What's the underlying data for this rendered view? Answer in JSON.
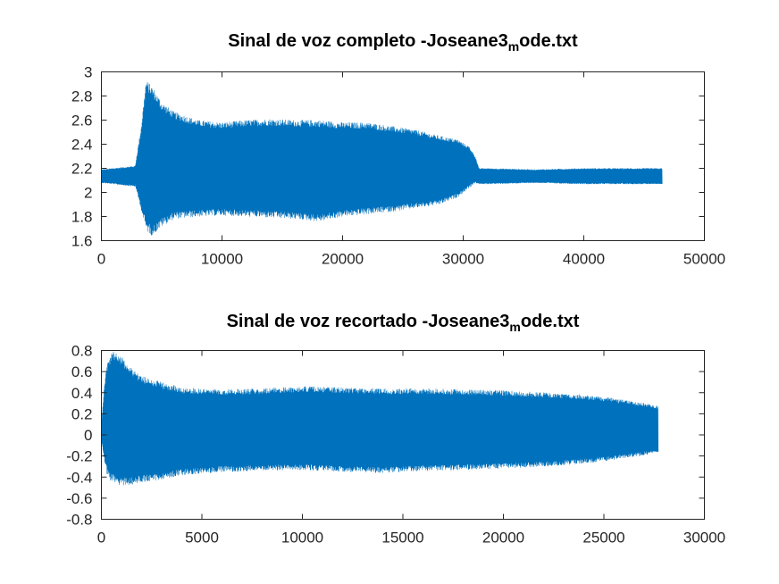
{
  "chart_data": [
    {
      "type": "line",
      "title_main": "Sinal de voz completo -Joseane3",
      "title_sub": "m",
      "title_tail": "ode.txt",
      "xlim": [
        0,
        50000
      ],
      "ylim": [
        1.6,
        3.0
      ],
      "xticks": [
        0,
        10000,
        20000,
        30000,
        40000,
        50000
      ],
      "xtick_labels": [
        "0",
        "10000",
        "20000",
        "30000",
        "40000",
        "50000"
      ],
      "yticks": [
        1.6,
        1.8,
        2.0,
        2.2,
        2.4,
        2.6,
        2.8,
        3.0
      ],
      "ytick_labels": [
        "1.6",
        "1.8",
        "2",
        "2.2",
        "2.4",
        "2.6",
        "2.8",
        "3"
      ],
      "series_color": "#0072bd",
      "envelope": {
        "x": [
          0,
          2800,
          3300,
          3700,
          4200,
          5000,
          6000,
          8000,
          10000,
          12000,
          14000,
          16000,
          18000,
          20000,
          22000,
          24000,
          26000,
          28000,
          29500,
          30500,
          31000,
          31300,
          32000,
          36000,
          40000,
          44000,
          46500
        ],
        "upper": [
          2.19,
          2.22,
          2.55,
          2.93,
          2.88,
          2.75,
          2.67,
          2.6,
          2.58,
          2.6,
          2.61,
          2.6,
          2.6,
          2.58,
          2.58,
          2.55,
          2.52,
          2.47,
          2.44,
          2.38,
          2.3,
          2.2,
          2.2,
          2.19,
          2.2,
          2.2,
          2.2
        ],
        "lower": [
          2.08,
          2.05,
          1.85,
          1.68,
          1.64,
          1.72,
          1.78,
          1.8,
          1.81,
          1.8,
          1.79,
          1.78,
          1.76,
          1.8,
          1.82,
          1.84,
          1.87,
          1.9,
          1.96,
          2.04,
          2.08,
          2.07,
          2.07,
          2.08,
          2.07,
          2.07,
          2.07
        ]
      }
    },
    {
      "type": "line",
      "title_main": "Sinal de voz recortado -Joseane3",
      "title_sub": "m",
      "title_tail": "ode.txt",
      "xlim": [
        0,
        30000
      ],
      "ylim": [
        -0.8,
        0.8
      ],
      "xticks": [
        0,
        5000,
        10000,
        15000,
        20000,
        25000,
        30000
      ],
      "xtick_labels": [
        "0",
        "5000",
        "10000",
        "15000",
        "20000",
        "25000",
        "30000"
      ],
      "yticks": [
        -0.8,
        -0.6,
        -0.4,
        -0.2,
        0,
        0.2,
        0.4,
        0.6,
        0.8
      ],
      "ytick_labels": [
        "-0.8",
        "-0.6",
        "-0.4",
        "-0.2",
        "0",
        "0.2",
        "0.4",
        "0.6",
        "0.8"
      ],
      "series_color": "#0072bd",
      "envelope": {
        "x": [
          0,
          150,
          300,
          500,
          700,
          1000,
          1500,
          2000,
          3000,
          4000,
          6000,
          8000,
          10000,
          12000,
          14000,
          16000,
          18000,
          20000,
          22000,
          24000,
          25000,
          26000,
          27000,
          27700
        ],
        "upper": [
          0.1,
          0.5,
          0.68,
          0.78,
          0.8,
          0.74,
          0.64,
          0.56,
          0.5,
          0.45,
          0.43,
          0.44,
          0.46,
          0.45,
          0.44,
          0.44,
          0.43,
          0.42,
          0.4,
          0.38,
          0.36,
          0.33,
          0.3,
          0.27
        ],
        "lower": [
          -0.05,
          -0.28,
          -0.4,
          -0.45,
          -0.47,
          -0.48,
          -0.47,
          -0.45,
          -0.42,
          -0.38,
          -0.35,
          -0.34,
          -0.33,
          -0.35,
          -0.36,
          -0.34,
          -0.33,
          -0.32,
          -0.3,
          -0.27,
          -0.25,
          -0.22,
          -0.19,
          -0.16
        ]
      }
    }
  ]
}
